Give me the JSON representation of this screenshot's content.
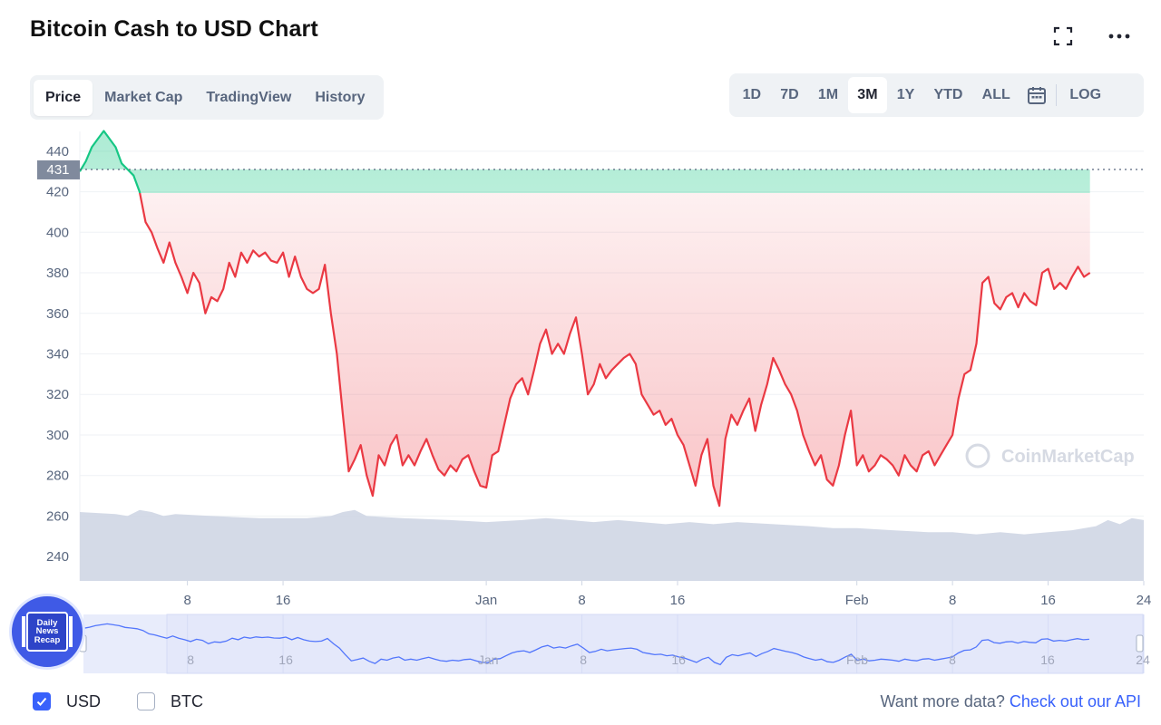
{
  "page": {
    "title": "Bitcoin Cash to USD Chart"
  },
  "toolbar": {
    "fullscreen_icon": "fullscreen-icon",
    "more_icon": "more-dots-icon"
  },
  "tabs": [
    {
      "label": "Price",
      "active": true
    },
    {
      "label": "Market Cap",
      "active": false
    },
    {
      "label": "TradingView",
      "active": false
    },
    {
      "label": "History",
      "active": false
    }
  ],
  "ranges": [
    {
      "label": "1D",
      "active": false
    },
    {
      "label": "7D",
      "active": false
    },
    {
      "label": "1M",
      "active": false
    },
    {
      "label": "3M",
      "active": true
    },
    {
      "label": "1Y",
      "active": false
    },
    {
      "label": "YTD",
      "active": false
    },
    {
      "label": "ALL",
      "active": false
    }
  ],
  "calendar_icon": "calendar-icon",
  "log_label": "LOG",
  "footer": {
    "currencies": [
      {
        "label": "USD",
        "checked": true
      },
      {
        "label": "BTC",
        "checked": false
      }
    ],
    "api_prefix": "Want more data?",
    "api_link": "Check out our API"
  },
  "badge": {
    "lines": [
      "Daily",
      "News",
      "Recap"
    ]
  },
  "colors": {
    "up": "#16c784",
    "down": "#ea3943",
    "accent": "#3861fb",
    "volume": "#cfd6e4",
    "navigator_line": "#3861fb"
  },
  "chart_data": {
    "type": "line",
    "title": "Bitcoin Cash to USD Chart",
    "xlabel": "",
    "ylabel": "",
    "y_ticks": [
      240,
      260,
      280,
      300,
      320,
      340,
      360,
      380,
      400,
      420,
      440
    ],
    "ylim": [
      228,
      452
    ],
    "x_tick_labels": [
      "8",
      "16",
      "Jan",
      "8",
      "16",
      "Feb",
      "8",
      "16",
      "24"
    ],
    "x_tick_days": [
      6,
      14,
      31,
      39,
      47,
      62,
      70,
      78,
      86
    ],
    "x_range_days": [
      -3,
      86
    ],
    "reference_price": 431,
    "reference_label": "431",
    "watermark": "CoinMarketCap",
    "series": [
      {
        "points": [
          [
            -3,
            430
          ],
          [
            -2.5,
            435
          ],
          [
            -2,
            442
          ],
          [
            -1.5,
            446
          ],
          [
            -1,
            450
          ],
          [
            -0.5,
            446
          ],
          [
            0,
            442
          ],
          [
            0.5,
            434
          ],
          [
            1,
            431
          ],
          [
            1.5,
            428
          ],
          [
            2,
            420
          ],
          [
            2.5,
            405
          ],
          [
            3,
            400
          ],
          [
            3.5,
            392
          ],
          [
            4,
            385
          ],
          [
            4.5,
            395
          ],
          [
            5,
            385
          ],
          [
            5.5,
            378
          ],
          [
            6,
            370
          ],
          [
            6.5,
            380
          ],
          [
            7,
            375
          ],
          [
            7.5,
            360
          ],
          [
            8,
            368
          ],
          [
            8.5,
            366
          ],
          [
            9,
            372
          ],
          [
            9.5,
            385
          ],
          [
            10,
            378
          ],
          [
            10.5,
            390
          ],
          [
            11,
            385
          ],
          [
            11.5,
            391
          ],
          [
            12,
            388
          ],
          [
            12.5,
            390
          ],
          [
            13,
            386
          ],
          [
            13.5,
            385
          ],
          [
            14,
            390
          ],
          [
            14.5,
            378
          ],
          [
            15,
            388
          ],
          [
            15.5,
            378
          ],
          [
            16,
            372
          ],
          [
            16.5,
            370
          ],
          [
            17,
            372
          ],
          [
            17.5,
            384
          ],
          [
            18,
            360
          ],
          [
            18.5,
            340
          ],
          [
            19,
            310
          ],
          [
            19.5,
            282
          ],
          [
            20,
            288
          ],
          [
            20.5,
            295
          ],
          [
            21,
            280
          ],
          [
            21.5,
            270
          ],
          [
            22,
            290
          ],
          [
            22.5,
            285
          ],
          [
            23,
            295
          ],
          [
            23.5,
            300
          ],
          [
            24,
            285
          ],
          [
            24.5,
            290
          ],
          [
            25,
            285
          ],
          [
            25.5,
            292
          ],
          [
            26,
            298
          ],
          [
            26.5,
            290
          ],
          [
            27,
            283
          ],
          [
            27.5,
            280
          ],
          [
            28,
            285
          ],
          [
            28.5,
            282
          ],
          [
            29,
            288
          ],
          [
            29.5,
            290
          ],
          [
            30,
            282
          ],
          [
            30.5,
            275
          ],
          [
            31,
            274
          ],
          [
            31.5,
            290
          ],
          [
            32,
            292
          ],
          [
            32.5,
            305
          ],
          [
            33,
            318
          ],
          [
            33.5,
            325
          ],
          [
            34,
            328
          ],
          [
            34.5,
            320
          ],
          [
            35,
            332
          ],
          [
            35.5,
            345
          ],
          [
            36,
            352
          ],
          [
            36.5,
            340
          ],
          [
            37,
            345
          ],
          [
            37.5,
            340
          ],
          [
            38,
            350
          ],
          [
            38.5,
            358
          ],
          [
            39,
            340
          ],
          [
            39.5,
            320
          ],
          [
            40,
            325
          ],
          [
            40.5,
            335
          ],
          [
            41,
            328
          ],
          [
            41.5,
            332
          ],
          [
            42,
            335
          ],
          [
            42.5,
            338
          ],
          [
            43,
            340
          ],
          [
            43.5,
            335
          ],
          [
            44,
            320
          ],
          [
            44.5,
            315
          ],
          [
            45,
            310
          ],
          [
            45.5,
            312
          ],
          [
            46,
            305
          ],
          [
            46.5,
            308
          ],
          [
            47,
            300
          ],
          [
            47.5,
            295
          ],
          [
            48,
            285
          ],
          [
            48.5,
            275
          ],
          [
            49,
            290
          ],
          [
            49.5,
            298
          ],
          [
            50,
            275
          ],
          [
            50.5,
            265
          ],
          [
            51,
            298
          ],
          [
            51.5,
            310
          ],
          [
            52,
            305
          ],
          [
            52.5,
            312
          ],
          [
            53,
            318
          ],
          [
            53.5,
            302
          ],
          [
            54,
            315
          ],
          [
            54.5,
            325
          ],
          [
            55,
            338
          ],
          [
            55.5,
            332
          ],
          [
            56,
            325
          ],
          [
            56.5,
            320
          ],
          [
            57,
            312
          ],
          [
            57.5,
            300
          ],
          [
            58,
            292
          ],
          [
            58.5,
            285
          ],
          [
            59,
            290
          ],
          [
            59.5,
            278
          ],
          [
            60,
            275
          ],
          [
            60.5,
            285
          ],
          [
            61,
            300
          ],
          [
            61.5,
            312
          ],
          [
            62,
            285
          ],
          [
            62.5,
            290
          ],
          [
            63,
            282
          ],
          [
            63.5,
            285
          ],
          [
            64,
            290
          ],
          [
            64.5,
            288
          ],
          [
            65,
            285
          ],
          [
            65.5,
            280
          ],
          [
            66,
            290
          ],
          [
            66.5,
            285
          ],
          [
            67,
            282
          ],
          [
            67.5,
            290
          ],
          [
            68,
            292
          ],
          [
            68.5,
            285
          ],
          [
            69,
            290
          ],
          [
            69.5,
            295
          ],
          [
            70,
            300
          ],
          [
            70.5,
            318
          ],
          [
            71,
            330
          ],
          [
            71.5,
            332
          ],
          [
            72,
            345
          ],
          [
            72.5,
            375
          ],
          [
            73,
            378
          ],
          [
            73.5,
            365
          ],
          [
            74,
            362
          ],
          [
            74.5,
            368
          ],
          [
            75,
            370
          ],
          [
            75.5,
            363
          ],
          [
            76,
            370
          ],
          [
            76.5,
            366
          ],
          [
            77,
            364
          ],
          [
            77.5,
            380
          ],
          [
            78,
            382
          ],
          [
            78.5,
            372
          ],
          [
            79,
            375
          ],
          [
            79.5,
            372
          ],
          [
            80,
            378
          ],
          [
            80.5,
            383
          ],
          [
            81,
            378
          ],
          [
            81.5,
            380
          ]
        ]
      }
    ],
    "volume": [
      [
        -3,
        262
      ],
      [
        0,
        261
      ],
      [
        1,
        260
      ],
      [
        2,
        263
      ],
      [
        3,
        262
      ],
      [
        4,
        260
      ],
      [
        5,
        261
      ],
      [
        8,
        260
      ],
      [
        12,
        259
      ],
      [
        16,
        259
      ],
      [
        18,
        260
      ],
      [
        19,
        262
      ],
      [
        20,
        263
      ],
      [
        21,
        260
      ],
      [
        24,
        259
      ],
      [
        28,
        258
      ],
      [
        31,
        257
      ],
      [
        34,
        258
      ],
      [
        36,
        259
      ],
      [
        38,
        258
      ],
      [
        40,
        257
      ],
      [
        42,
        258
      ],
      [
        44,
        257
      ],
      [
        46,
        256
      ],
      [
        48,
        257
      ],
      [
        50,
        256
      ],
      [
        52,
        257
      ],
      [
        55,
        256
      ],
      [
        58,
        255
      ],
      [
        60,
        254
      ],
      [
        62,
        254
      ],
      [
        65,
        253
      ],
      [
        68,
        252
      ],
      [
        70,
        252
      ],
      [
        72,
        251
      ],
      [
        74,
        252
      ],
      [
        76,
        251
      ],
      [
        78,
        252
      ],
      [
        80,
        253
      ],
      [
        82,
        255
      ],
      [
        83,
        258
      ],
      [
        84,
        256
      ],
      [
        85,
        259
      ],
      [
        86,
        258
      ]
    ],
    "navigator": {
      "x_tick_labels": [
        "8",
        "16",
        "Jan",
        "8",
        "16",
        "Feb",
        "8",
        "16",
        "24"
      ]
    }
  }
}
